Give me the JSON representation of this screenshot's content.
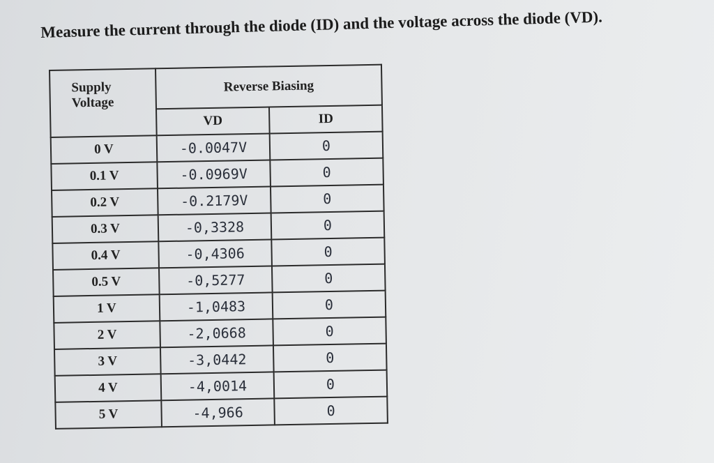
{
  "header": {
    "title": "Measure the current through the diode (ID) and the voltage across the diode (VD)."
  },
  "table": {
    "col_header": "Supply Voltage",
    "group_header": "Reverse Biasing",
    "sub_headers": [
      "VD",
      "ID"
    ],
    "rows": [
      [
        "0 V",
        "-0.0047V",
        "0"
      ],
      [
        "0.1 V",
        "-0.0969V",
        "0"
      ],
      [
        "0.2 V",
        "-0.2179V",
        "0"
      ],
      [
        "0.3 V",
        "-0,3328",
        "0"
      ],
      [
        "0.4 V",
        "-0,4306",
        "0"
      ],
      [
        "0.5 V",
        "-0,5277",
        "0"
      ],
      [
        "1 V",
        "-1,0483",
        "0"
      ],
      [
        "2 V",
        "-2,0668",
        "0"
      ],
      [
        "3 V",
        "-3,0442",
        "0"
      ],
      [
        "4 V",
        "-4,0014",
        "0"
      ],
      [
        "5 V",
        "-4,966",
        "0"
      ]
    ]
  }
}
